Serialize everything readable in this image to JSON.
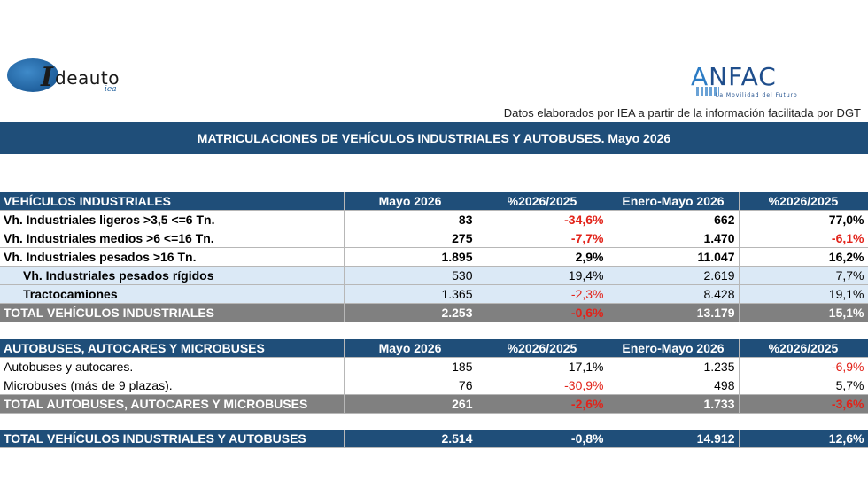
{
  "logos": {
    "left": {
      "mark": "I",
      "text": "deauto",
      "sub": "iea"
    },
    "right": {
      "name_a": "A",
      "name_rest": "NFAC",
      "tagline": "La Movilidad del Futuro"
    }
  },
  "source_note": "Datos elaborados por IEA a partir de la información facilitada por DGT",
  "banner_title": "MATRICULACIONES DE VEHÍCULOS INDUSTRIALES Y AUTOBUSES.  Mayo 2026",
  "industrial": {
    "header": [
      "VEHÍCULOS INDUSTRIALES",
      "Mayo 2026",
      "%2026/2025",
      "Enero-Mayo 2026",
      "%2026/2025"
    ],
    "rows": [
      {
        "label": "Vh. Industriales ligeros >3,5 <=6 Tn.",
        "month": "83",
        "pct_month": "-34,6%",
        "ytd": "662",
        "pct_ytd": "77,0%"
      },
      {
        "label": "Vh. Industriales medios >6  <=16 Tn.",
        "month": "275",
        "pct_month": "-7,7%",
        "ytd": "1.470",
        "pct_ytd": "-6,1%"
      },
      {
        "label": "Vh. Industriales  pesados >16 Tn.",
        "month": "1.895",
        "pct_month": "2,9%",
        "ytd": "11.047",
        "pct_ytd": "16,2%"
      },
      {
        "label": "Vh. Industriales pesados rígidos",
        "month": "530",
        "pct_month": "19,4%",
        "ytd": "2.619",
        "pct_ytd": "7,7%"
      },
      {
        "label": "Tractocamiones",
        "month": "1.365",
        "pct_month": "-2,3%",
        "ytd": "8.428",
        "pct_ytd": "19,1%"
      }
    ],
    "total": {
      "label": "TOTAL VEHÍCULOS INDUSTRIALES",
      "month": "2.253",
      "pct_month": "-0,6%",
      "ytd": "13.179",
      "pct_ytd": "15,1%"
    }
  },
  "buses": {
    "header": [
      "AUTOBUSES, AUTOCARES Y MICROBUSES",
      "Mayo 2026",
      "%2026/2025",
      "Enero-Mayo 2026",
      "%2026/2025"
    ],
    "rows": [
      {
        "label": "Autobuses y autocares.",
        "month": "185",
        "pct_month": "17,1%",
        "ytd": "1.235",
        "pct_ytd": "-6,9%"
      },
      {
        "label": "Microbuses (más de 9 plazas).",
        "month": "76",
        "pct_month": "-30,9%",
        "ytd": "498",
        "pct_ytd": "5,7%"
      }
    ],
    "total": {
      "label": "TOTAL AUTOBUSES, AUTOCARES Y MICROBUSES",
      "month": "261",
      "pct_month": "-2,6%",
      "ytd": "1.733",
      "pct_ytd": "-3,6%"
    }
  },
  "grand_total": {
    "label": "TOTAL VEHÍCULOS INDUSTRIALES Y AUTOBUSES",
    "month": "2.514",
    "pct_month": "-0,8%",
    "ytd": "14.912",
    "pct_ytd": "12,6%"
  }
}
